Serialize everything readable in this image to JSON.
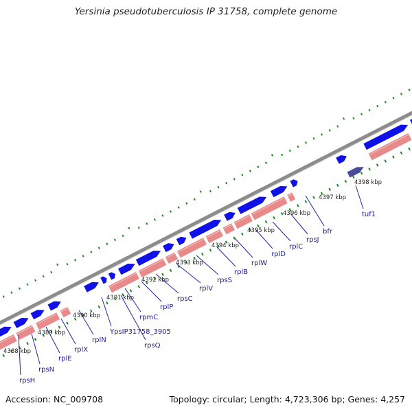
{
  "header": {
    "title": "Yersinia pseudotuberculosis IP 31758, complete genome"
  },
  "footer": {
    "accession": "Accession: NC_009708",
    "summary": "Topology: circular; Length: 4,723,306 bp; Genes: 4,257"
  },
  "map": {
    "ticks": [
      "4388 kbp",
      "4389 kbp",
      "4390 kbp",
      "4391 kbp",
      "4392 kbp",
      "4393 kbp",
      "4394 kbp",
      "4395 kbp",
      "4396 kbp",
      "4397 kbp",
      "4398 kbp"
    ],
    "genes": [
      "rpsH",
      "rpsN",
      "rplE",
      "rplX",
      "rplN",
      "YpsIP31758_3905",
      "rpsQ",
      "rpmC",
      "rplP",
      "rpsC",
      "rplV",
      "rpsS",
      "rplB",
      "rplW",
      "rplD",
      "rplC",
      "rpsJ",
      "bfr",
      "tuf1"
    ],
    "colors": {
      "backbone": "#8c8c8c",
      "forward_cds": "#1010e8",
      "reverse_cds": "#e88a8a",
      "highlight_cds": "#4a4a9a",
      "gc_marks": "#1e8a1e",
      "label": "#1a1aa0"
    }
  }
}
